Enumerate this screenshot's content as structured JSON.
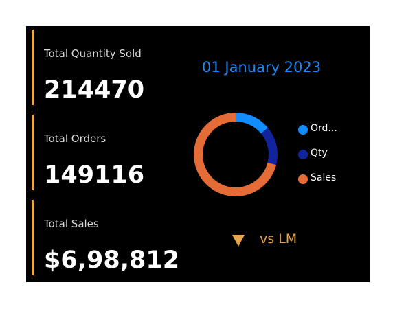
{
  "kpis": [
    {
      "label": "Total Quantity Sold",
      "value": "214470"
    },
    {
      "label": "Total Orders",
      "value": "149116"
    },
    {
      "label": "Total Sales",
      "value": "$6,98,812"
    }
  ],
  "date_label": "01 January 2023",
  "comparison": {
    "label": "vs LM",
    "icon": "down-triangle-icon",
    "color": "#e6a64b"
  },
  "colors": {
    "background": "#000000",
    "accent": "#e6a64b",
    "date": "#1e86f0"
  },
  "chart_data": {
    "type": "pie",
    "donut": true,
    "categories": [
      "Ord...",
      "Qty",
      "Sales"
    ],
    "values": [
      14,
      15,
      71
    ],
    "colors": [
      "#118dff",
      "#12239e",
      "#e66c37"
    ],
    "legend": "right"
  }
}
